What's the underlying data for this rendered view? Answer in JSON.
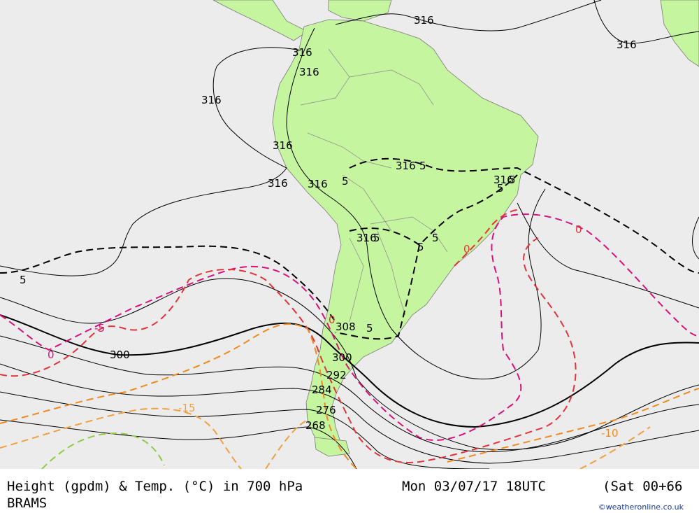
{
  "title": "Height (gpdm) & Temp. (°C) in 700 hPa",
  "model": "BRAMS",
  "datetime": "Mon 03/07/17 18UTC",
  "forecast": "(Sat 00+66",
  "credit": "©weatheronline.co.uk",
  "colors": {
    "ocean": "#ececec",
    "land": "#c6f5a0",
    "height_line": "#000000",
    "temp_neg5": "#d8127a",
    "temp_0": "#e2343a",
    "temp_neg10": "#f08a1e",
    "temp_neg15": "#f0a040",
    "temp_neg20": "#8ccc44"
  },
  "height_labels": [
    "316",
    "316",
    "316",
    "316",
    "316",
    "316",
    "316",
    "316",
    "316",
    "316",
    "316",
    "308",
    "300",
    "300",
    "292",
    "284",
    "276",
    "268"
  ],
  "temp_labels": [
    "5",
    "5",
    "5",
    "5",
    "5",
    "5",
    "5",
    "5",
    "5",
    "0",
    "0",
    "0",
    "-5",
    "0",
    "-15",
    "-10"
  ]
}
